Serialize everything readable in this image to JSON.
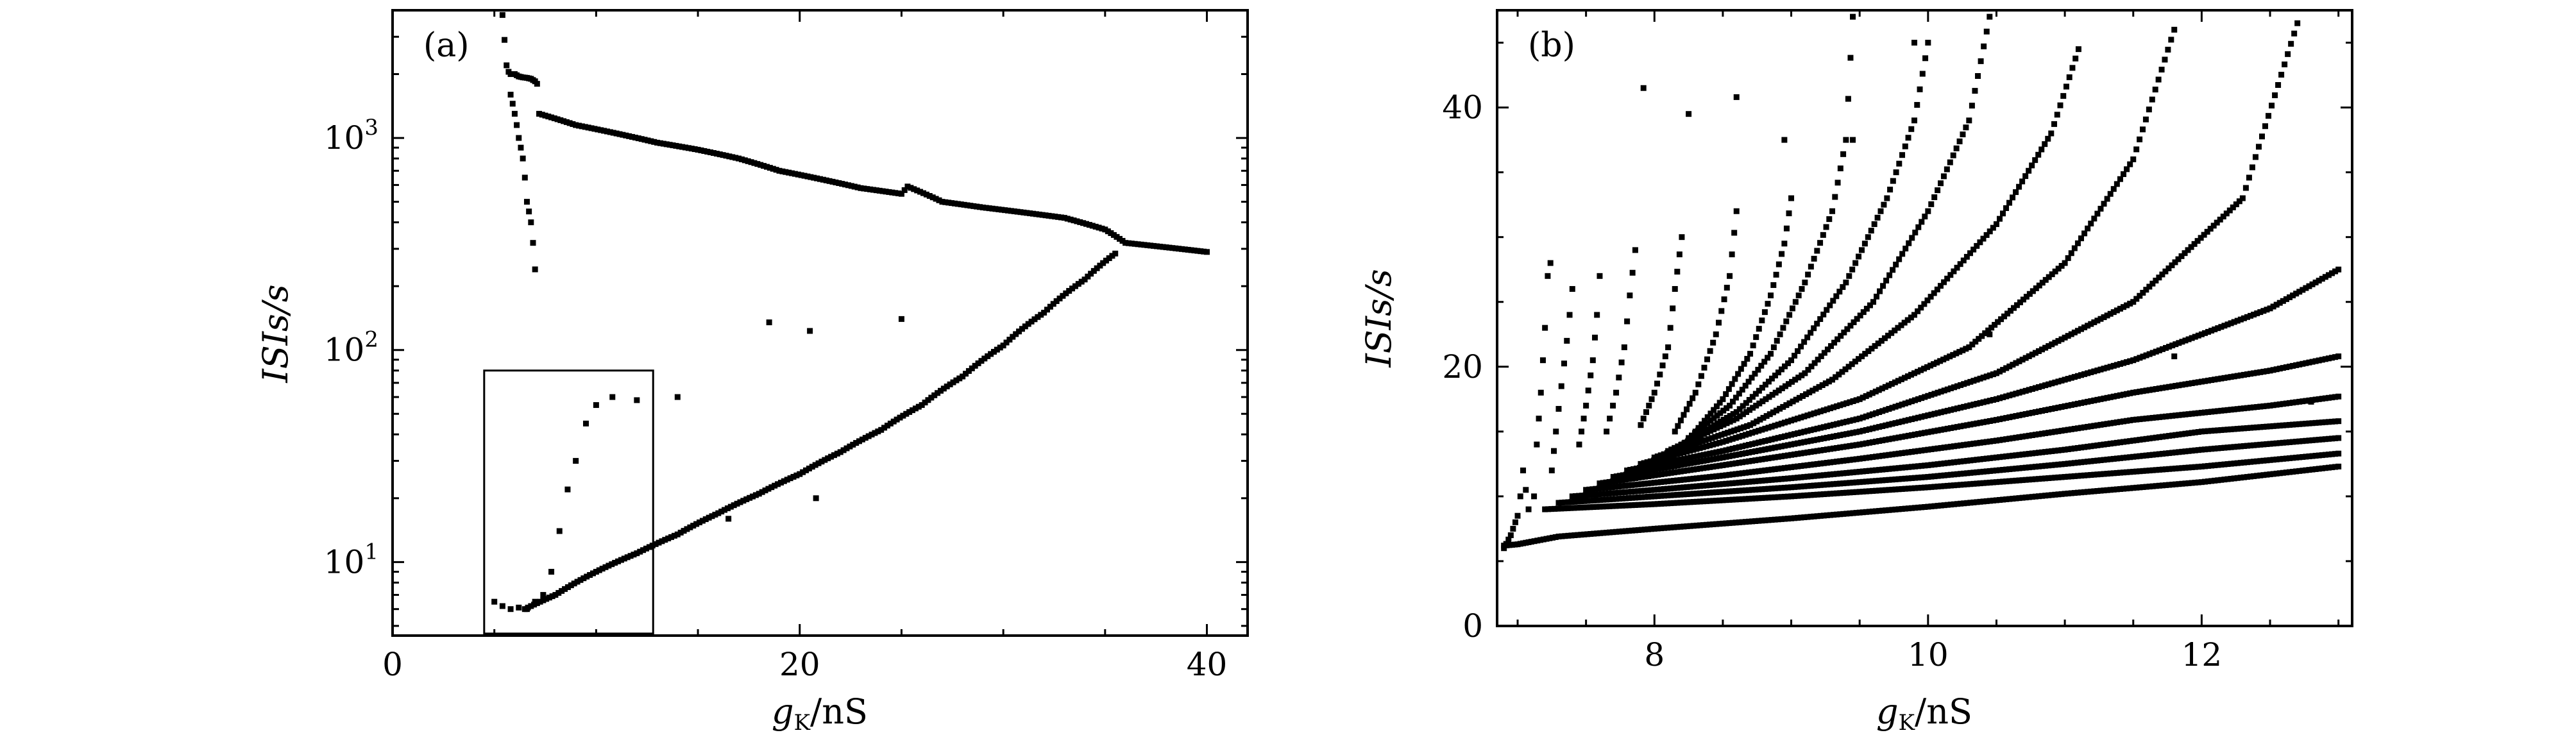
{
  "chart_data": [
    {
      "panel": "(a)",
      "type": "scatter",
      "xlabel": {
        "main": "g",
        "sub": "K",
        "unit": "/nS"
      },
      "ylabel": "ISIs/s",
      "xlim": [
        0,
        42
      ],
      "ylim": [
        4.5,
        4000
      ],
      "yscale": "log",
      "x_ticks": [
        0,
        20,
        40
      ],
      "x_tick_labels": [
        "0",
        "20",
        "40"
      ],
      "y_ticks": [
        10,
        100,
        1000
      ],
      "y_tick_labels": [
        {
          "base": "10",
          "exp": "1"
        },
        {
          "base": "10",
          "exp": "2"
        },
        {
          "base": "10",
          "exp": "3"
        }
      ],
      "inset_box": {
        "x": [
          4.5,
          12.8
        ],
        "y": [
          4.6,
          80
        ]
      },
      "series": [
        {
          "points": [
            [
              5.4,
              3800
            ],
            [
              5.5,
              2900
            ],
            [
              5.6,
              2200
            ],
            [
              5.7,
              2050
            ],
            [
              5.8,
              2000
            ],
            [
              6.0,
              2000
            ],
            [
              6.2,
              1950
            ],
            [
              6.4,
              1930
            ],
            [
              6.6,
              1920
            ],
            [
              6.8,
              1900
            ],
            [
              7.0,
              1850
            ],
            [
              7.1,
              1800
            ]
          ]
        },
        {
          "points": [
            [
              5.8,
              1600
            ],
            [
              6.0,
              1300
            ],
            [
              6.2,
              1000
            ],
            [
              6.4,
              800
            ],
            [
              6.6,
              500
            ],
            [
              6.8,
              400
            ],
            [
              7.0,
              240
            ]
          ]
        },
        {
          "points": [
            [
              7.2,
              1300
            ],
            [
              9,
              1150
            ],
            [
              11,
              1050
            ],
            [
              13,
              950
            ],
            [
              15,
              880
            ],
            [
              17,
              800
            ],
            [
              19,
              700
            ],
            [
              21,
              640
            ],
            [
              23,
              580
            ],
            [
              25,
              545
            ],
            [
              25.3,
              590
            ],
            [
              27,
              500
            ],
            [
              29,
              470
            ],
            [
              31,
              445
            ],
            [
              33,
              420
            ],
            [
              35,
              370
            ],
            [
              36,
              320
            ],
            [
              38,
              305
            ],
            [
              40,
              290
            ]
          ]
        },
        {
          "points": [
            [
              6.5,
              6.0
            ],
            [
              8,
              7.0
            ],
            [
              10,
              9.0
            ],
            [
              12,
              11.0
            ],
            [
              14,
              13.5
            ],
            [
              16,
              17.0
            ],
            [
              18,
              21.0
            ],
            [
              20,
              26.0
            ],
            [
              22,
              33.0
            ],
            [
              24,
              42.0
            ],
            [
              26,
              55.0
            ],
            [
              28,
              75.0
            ],
            [
              30,
              105.0
            ],
            [
              32,
              150.0
            ],
            [
              34,
              215.0
            ],
            [
              35.5,
              285.0
            ]
          ]
        },
        {
          "points": [
            [
              5.0,
              6.5
            ],
            [
              5.4,
              6.2
            ],
            [
              5.8,
              6.0
            ],
            [
              6.2,
              6.1
            ],
            [
              6.6,
              6.0
            ],
            [
              7.0,
              6.5
            ],
            [
              7.4,
              7.0
            ],
            [
              7.8,
              9.0
            ],
            [
              8.2,
              14.0
            ],
            [
              8.6,
              22.0
            ],
            [
              9.0,
              30.0
            ],
            [
              9.5,
              45.0
            ],
            [
              10.0,
              55.0
            ],
            [
              10.8,
              60.0
            ],
            [
              12.0,
              58.0
            ],
            [
              14.0,
              60.0
            ],
            [
              16.5,
              16.0
            ],
            [
              18.5,
              135.0
            ],
            [
              20.5,
              123.0
            ],
            [
              20.8,
              20.0
            ],
            [
              25.0,
              140.0
            ]
          ]
        }
      ]
    },
    {
      "panel": "(b)",
      "type": "scatter",
      "xlabel": {
        "main": "g",
        "sub": "K",
        "unit": "/nS"
      },
      "ylabel": "ISIs/s",
      "xlim": [
        6.85,
        13.1
      ],
      "ylim": [
        0,
        47.5
      ],
      "yscale": "linear",
      "x_ticks": [
        8,
        10,
        12
      ],
      "x_tick_labels": [
        "8",
        "10",
        "12"
      ],
      "y_ticks": [
        0,
        20,
        40
      ],
      "y_tick_labels": [
        "0",
        "20",
        "40"
      ],
      "series": [
        {
          "points": [
            [
              6.9,
              6.2
            ],
            [
              7.0,
              6.3
            ],
            [
              7.1,
              6.5
            ],
            [
              7.3,
              6.9
            ],
            [
              8.0,
              7.5
            ],
            [
              9.0,
              8.3
            ],
            [
              10.0,
              9.2
            ],
            [
              11.0,
              10.2
            ],
            [
              12.0,
              11.1
            ],
            [
              13.0,
              12.3
            ]
          ]
        },
        {
          "points": [
            [
              7.2,
              9.0
            ],
            [
              8.0,
              9.4
            ],
            [
              9.0,
              10.0
            ],
            [
              10.0,
              10.7
            ],
            [
              11.0,
              11.5
            ],
            [
              12.0,
              12.3
            ],
            [
              13.0,
              13.3
            ]
          ]
        },
        {
          "points": [
            [
              7.3,
              9.5
            ],
            [
              8.0,
              10.0
            ],
            [
              9.0,
              10.7
            ],
            [
              10.0,
              11.5
            ],
            [
              11.0,
              12.5
            ],
            [
              12.0,
              13.6
            ],
            [
              13.0,
              14.5
            ]
          ]
        },
        {
          "points": [
            [
              7.4,
              10.0
            ],
            [
              8.0,
              10.5
            ],
            [
              9.0,
              11.4
            ],
            [
              10.0,
              12.4
            ],
            [
              11.0,
              13.6
            ],
            [
              12.0,
              15.0
            ],
            [
              13.0,
              15.8
            ]
          ]
        },
        {
          "points": [
            [
              7.5,
              10.5
            ],
            [
              8.5,
              11.6
            ],
            [
              9.5,
              12.9
            ],
            [
              10.5,
              14.3
            ],
            [
              11.5,
              15.9
            ],
            [
              12.5,
              17.0
            ],
            [
              13.0,
              17.7
            ]
          ]
        },
        {
          "points": [
            [
              7.6,
              11.0
            ],
            [
              8.5,
              12.4
            ],
            [
              9.5,
              14.0
            ],
            [
              10.5,
              15.9
            ],
            [
              11.5,
              18.0
            ],
            [
              12.5,
              19.7
            ],
            [
              13.0,
              20.8
            ]
          ]
        },
        {
          "points": [
            [
              7.7,
              11.5
            ],
            [
              8.5,
              13.0
            ],
            [
              9.5,
              15.0
            ],
            [
              10.5,
              17.5
            ],
            [
              11.5,
              20.5
            ],
            [
              12.5,
              24.5
            ],
            [
              13.0,
              27.5
            ]
          ]
        },
        {
          "points": [
            [
              7.8,
              12.0
            ],
            [
              8.5,
              13.5
            ],
            [
              9.5,
              16.0
            ],
            [
              10.5,
              19.5
            ],
            [
              11.5,
              25.0
            ],
            [
              12.3,
              33.0
            ],
            [
              12.7,
              46.5
            ]
          ]
        },
        {
          "points": [
            [
              7.9,
              12.5
            ],
            [
              8.5,
              14.2
            ],
            [
              9.5,
              17.5
            ],
            [
              10.3,
              21.5
            ],
            [
              11.0,
              28.0
            ],
            [
              11.5,
              36.0
            ],
            [
              11.8,
              46.0
            ]
          ]
        },
        {
          "points": [
            [
              8.0,
              13.0
            ],
            [
              8.7,
              15.5
            ],
            [
              9.3,
              19.0
            ],
            [
              9.9,
              24.0
            ],
            [
              10.5,
              31.0
            ],
            [
              10.9,
              38.0
            ],
            [
              11.1,
              44.5
            ]
          ]
        },
        {
          "points": [
            [
              8.1,
              13.5
            ],
            [
              8.6,
              16.0
            ],
            [
              9.1,
              19.5
            ],
            [
              9.6,
              25.0
            ],
            [
              10.0,
              32.0
            ],
            [
              10.3,
              39.0
            ],
            [
              10.45,
              47.0
            ]
          ]
        },
        {
          "points": [
            [
              8.2,
              14.0
            ],
            [
              8.6,
              16.5
            ],
            [
              9.0,
              20.5
            ],
            [
              9.4,
              26.5
            ],
            [
              9.7,
              33.0
            ],
            [
              9.9,
              39.0
            ],
            [
              10.0,
              45.0
            ]
          ]
        },
        {
          "points": [
            [
              8.25,
              14.5
            ],
            [
              8.55,
              17.0
            ],
            [
              8.85,
              21.0
            ],
            [
              9.1,
              26.5
            ],
            [
              9.3,
              32.0
            ],
            [
              9.4,
              37.5
            ],
            [
              9.45,
              47.0
            ]
          ]
        },
        {
          "points": [
            [
              8.3,
              15.0
            ],
            [
              8.5,
              17.5
            ],
            [
              8.7,
              21.0
            ],
            [
              8.85,
              25.5
            ],
            [
              8.95,
              29.5
            ],
            [
              9.0,
              33.0
            ]
          ]
        },
        {
          "points": [
            [
              8.15,
              15.0
            ],
            [
              8.3,
              18.0
            ],
            [
              8.45,
              22.5
            ],
            [
              8.55,
              27.0
            ],
            [
              8.6,
              32.0
            ]
          ]
        },
        {
          "points": [
            [
              7.9,
              15.5
            ],
            [
              8.0,
              18.0
            ],
            [
              8.1,
              21.5
            ],
            [
              8.15,
              26.0
            ],
            [
              8.2,
              30.0
            ]
          ]
        },
        {
          "points": [
            [
              7.65,
              15.0
            ],
            [
              7.72,
              18.0
            ],
            [
              7.78,
              21.5
            ],
            [
              7.82,
              25.5
            ],
            [
              7.86,
              29.0
            ]
          ]
        },
        {
          "points": [
            [
              7.45,
              14.0
            ],
            [
              7.5,
              17.0
            ],
            [
              7.55,
              20.5
            ],
            [
              7.58,
              24.0
            ],
            [
              7.6,
              27.0
            ]
          ]
        },
        {
          "points": [
            [
              7.25,
              12.0
            ],
            [
              7.28,
              15.0
            ],
            [
              7.32,
              18.5
            ],
            [
              7.36,
              22.0
            ],
            [
              7.4,
              26.0
            ]
          ]
        },
        {
          "points": [
            [
              7.12,
              10.0
            ],
            [
              7.14,
              14.0
            ],
            [
              7.17,
              18.0
            ],
            [
              7.2,
              23.0
            ],
            [
              7.22,
              27.0
            ],
            [
              7.24,
              28.0
            ]
          ]
        },
        {
          "points": [
            [
              6.9,
              6.0
            ],
            [
              6.95,
              7.0
            ],
            [
              7.0,
              8.5
            ],
            [
              7.02,
              10.0
            ],
            [
              7.04,
              12.0
            ],
            [
              7.08,
              9.0
            ]
          ]
        },
        {
          "points": [
            [
              7.92,
              41.5
            ],
            [
              8.25,
              39.5
            ],
            [
              8.6,
              40.8
            ],
            [
              8.95,
              37.5
            ],
            [
              9.45,
              37.5
            ],
            [
              9.9,
              45.0
            ],
            [
              10.45,
              22.5
            ],
            [
              11.8,
              20.8
            ],
            [
              12.8,
              17.3
            ]
          ]
        }
      ]
    }
  ]
}
